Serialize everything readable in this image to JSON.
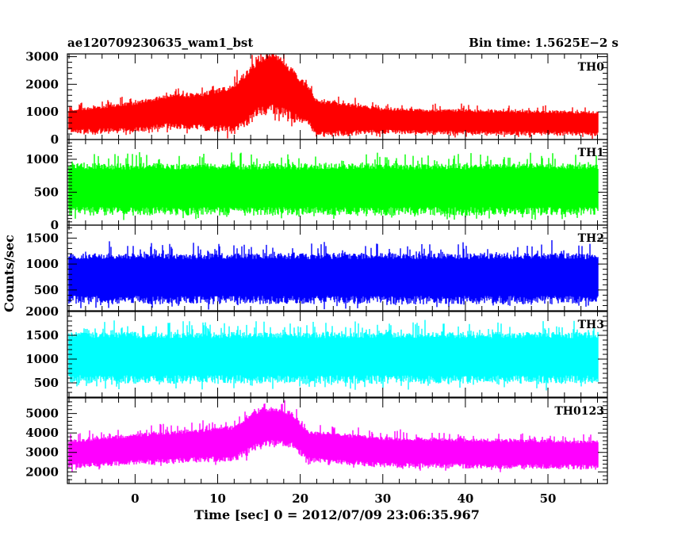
{
  "chart_data": {
    "type": "line",
    "title_left": "ae120709230635_wam1_bst",
    "title_right": "Bin time: 1.5625E−2 s",
    "xlabel": "Time [sec] 0 = 2012/07/09 23:06:35.967",
    "ylabel": "Counts/sec",
    "xlim": [
      -8.2,
      57.2
    ],
    "data_xlim": [
      -8.0,
      56.0
    ],
    "bin_time": 0.015625,
    "xticks": [
      0,
      10,
      20,
      30,
      40,
      50
    ],
    "grid": false,
    "panels": [
      {
        "label": "TH0",
        "color": "#ff0000",
        "ylim": [
          0,
          3100
        ],
        "yticks": [
          0,
          1000,
          2000,
          3000
        ],
        "profile": [
          [
            -8,
            680
          ],
          [
            0,
            850
          ],
          [
            4,
            1050
          ],
          [
            8,
            1050
          ],
          [
            12,
            1150
          ],
          [
            15,
            1950
          ],
          [
            16.5,
            2100
          ],
          [
            18,
            1900
          ],
          [
            21,
            1250
          ],
          [
            22,
            820
          ],
          [
            30,
            700
          ],
          [
            40,
            650
          ],
          [
            56,
            600
          ]
        ],
        "spread": [
          [
            -8,
            420
          ],
          [
            8,
            650
          ],
          [
            14,
            1000
          ],
          [
            17,
            1100
          ],
          [
            21,
            700
          ],
          [
            30,
            450
          ],
          [
            56,
            430
          ]
        ]
      },
      {
        "label": "TH1",
        "color": "#00ff00",
        "ylim": [
          0,
          1300
        ],
        "yticks": [
          0,
          500,
          1000
        ],
        "profile": [
          [
            -8,
            560
          ],
          [
            56,
            560
          ]
        ],
        "spread": [
          [
            -8,
            380
          ],
          [
            56,
            380
          ]
        ]
      },
      {
        "label": "TH2",
        "color": "#0000ff",
        "ylim": [
          100,
          1750
        ],
        "yticks": [
          500,
          1000,
          1500
        ],
        "profile": [
          [
            -8,
            740
          ],
          [
            56,
            740
          ]
        ],
        "spread": [
          [
            -8,
            470
          ],
          [
            56,
            470
          ]
        ]
      },
      {
        "label": "TH3",
        "color": "#00ffff",
        "ylim": [
          200,
          2000
        ],
        "yticks": [
          500,
          1000,
          1500,
          2000
        ],
        "profile": [
          [
            -8,
            1050
          ],
          [
            56,
            1050
          ]
        ],
        "spread": [
          [
            -8,
            520
          ],
          [
            56,
            520
          ]
        ]
      },
      {
        "label": "TH0123",
        "color": "#ff00ff",
        "ylim": [
          1400,
          5800
        ],
        "yticks": [
          2000,
          3000,
          4000,
          5000
        ],
        "profile": [
          [
            -8,
            2950
          ],
          [
            0,
            3200
          ],
          [
            8,
            3400
          ],
          [
            12,
            3500
          ],
          [
            15,
            4300
          ],
          [
            17,
            4400
          ],
          [
            19,
            4200
          ],
          [
            21,
            3350
          ],
          [
            30,
            3050
          ],
          [
            56,
            2900
          ]
        ],
        "spread": [
          [
            -8,
            720
          ],
          [
            10,
            850
          ],
          [
            15,
            1000
          ],
          [
            18,
            950
          ],
          [
            21,
            780
          ],
          [
            56,
            720
          ]
        ]
      }
    ]
  }
}
